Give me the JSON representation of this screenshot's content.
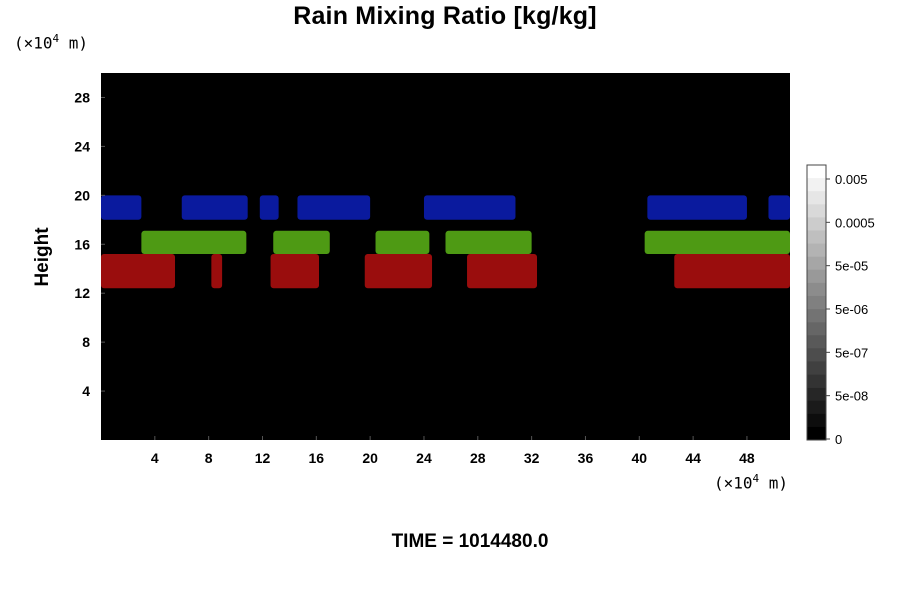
{
  "chart_data": {
    "type": "heatmap",
    "title": "Rain Mixing Ratio [kg/kg]",
    "ylabel": "Height",
    "x_unit": {
      "prefix": "(×10",
      "exp": "4",
      "suffix": " m)"
    },
    "y_unit": {
      "prefix": "(×10",
      "exp": "4",
      "suffix": " m)"
    },
    "xlim": [
      0,
      51.2
    ],
    "ylim": [
      0,
      30
    ],
    "x_ticks": [
      4,
      8,
      12,
      16,
      20,
      24,
      28,
      32,
      36,
      40,
      44,
      48
    ],
    "y_ticks": [
      4,
      8,
      12,
      16,
      20,
      24,
      28
    ],
    "background_color": "#000000",
    "bands": [
      {
        "color": "#9a0d0d",
        "y_range": [
          12.4,
          15.2
        ],
        "segments": [
          [
            0,
            5.5
          ],
          [
            8.2,
            9.0
          ],
          [
            12.6,
            16.2
          ],
          [
            19.6,
            24.6
          ],
          [
            27.2,
            32.4
          ],
          [
            42.6,
            51.2
          ]
        ]
      },
      {
        "color": "#4e9a14",
        "y_range": [
          15.2,
          17.1
        ],
        "segments": [
          [
            3.0,
            10.8
          ],
          [
            12.8,
            17.0
          ],
          [
            20.4,
            24.4
          ],
          [
            25.6,
            32.0
          ],
          [
            40.4,
            51.2
          ]
        ]
      },
      {
        "color": "#0a1a9e",
        "y_range": [
          18.0,
          20.0
        ],
        "segments": [
          [
            0,
            3.0
          ],
          [
            6.0,
            10.9
          ],
          [
            11.8,
            13.2
          ],
          [
            14.6,
            20.0
          ],
          [
            24.0,
            30.8
          ],
          [
            40.6,
            48.0
          ],
          [
            49.6,
            51.2
          ]
        ]
      }
    ],
    "colorbar": {
      "tick_labels": [
        "0.005",
        "0.0005",
        "5e-05",
        "5e-06",
        "5e-07",
        "5e-08",
        "0"
      ],
      "levels": [
        "#ffffff",
        "#f2f2f2",
        "#e6e6e6",
        "#d9d9d9",
        "#cccccc",
        "#bfbfbf",
        "#b3b3b3",
        "#a6a6a6",
        "#999999",
        "#8c8c8c",
        "#808080",
        "#737373",
        "#666666",
        "#595959",
        "#4d4d4d",
        "#404040",
        "#333333",
        "#262626",
        "#1a1a1a",
        "#0d0d0d",
        "#000000"
      ]
    }
  },
  "footer": {
    "time": "TIME = 1014480.0"
  }
}
